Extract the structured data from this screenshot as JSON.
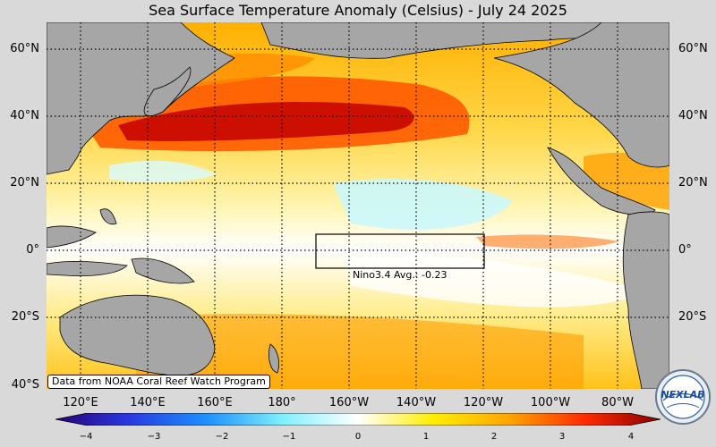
{
  "title": "Sea Surface Temperature Anomaly (Celsius) - July 24 2025",
  "map": {
    "lat_labels": [
      "60°N",
      "40°N",
      "20°N",
      "0°",
      "20°S",
      "40°S"
    ],
    "lon_labels": [
      "120°E",
      "140°E",
      "160°E",
      "180°",
      "160°W",
      "140°W",
      "120°W",
      "100°W",
      "80°W"
    ],
    "nino_box_label": "Nino3.4 Avg.: -0.23",
    "credit": "Data from NOAA Coral Reef Watch Program",
    "land_color": "#a6a6a6",
    "colors": {
      "very_cold": "#3a0a99",
      "cold": "#1e7cf0",
      "cool": "#9ef5ff",
      "neutral": "#ffffff",
      "warm": "#fff2a0",
      "warmer": "#ffcc00",
      "hot": "#ff6a00",
      "very_hot": "#b40000"
    }
  },
  "colorbar": {
    "ticks": [
      "−4",
      "−3",
      "−2",
      "−1",
      "0",
      "1",
      "2",
      "3",
      "4"
    ],
    "min": -4,
    "max": 4
  },
  "logo": {
    "text": "NEXLAB"
  }
}
